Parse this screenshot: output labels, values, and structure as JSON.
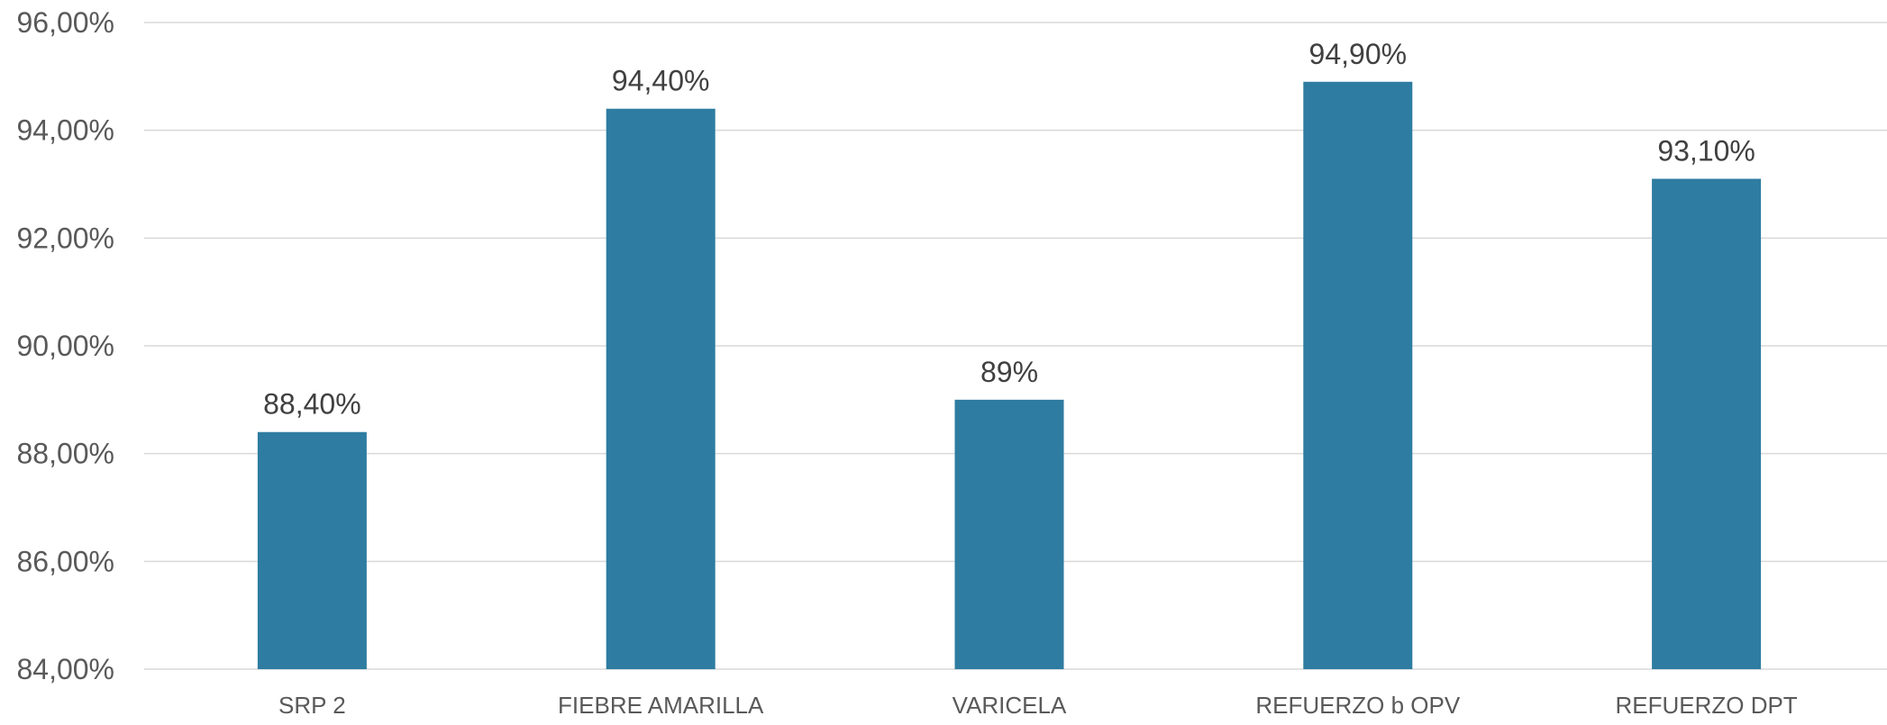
{
  "chart_data": {
    "type": "bar",
    "title": "",
    "xlabel": "",
    "ylabel": "",
    "categories": [
      "SRP 2",
      "FIEBRE AMARILLA",
      "VARICELA",
      "REFUERZO b OPV",
      "REFUERZO DPT"
    ],
    "values": [
      88.4,
      94.4,
      89.0,
      94.9,
      93.1
    ],
    "data_labels": [
      "88,40%",
      "94,40%",
      "89%",
      "94,90%",
      "93,10%"
    ],
    "ylim": [
      84,
      96
    ],
    "y_ticks": [
      84,
      86,
      88,
      90,
      92,
      94,
      96
    ],
    "y_tick_labels": [
      "84,00%",
      "86,00%",
      "88,00%",
      "90,00%",
      "92,00%",
      "94,00%",
      "96,00%"
    ],
    "grid": true,
    "legend": "none",
    "bar_color": "#2e7ca1"
  }
}
